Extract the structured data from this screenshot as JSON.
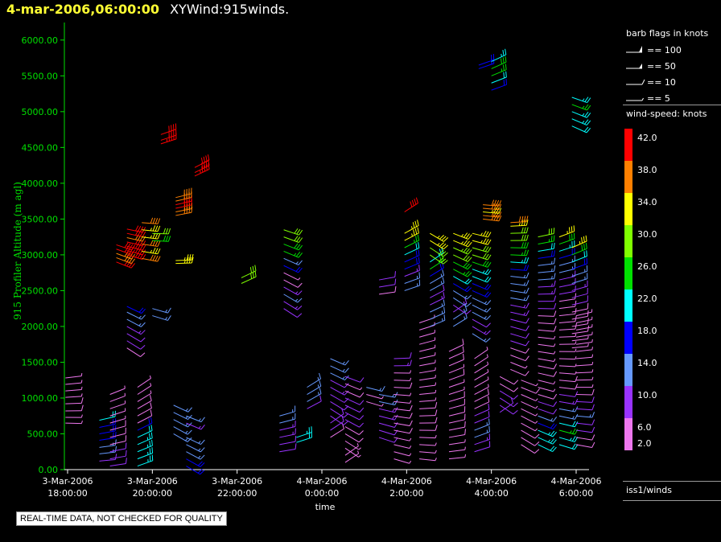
{
  "header": {
    "date_text": "4-mar-2006,06:00:00",
    "title_text": "XYWind:915winds."
  },
  "footer_note": "REAL-TIME DATA, NOT CHECKED FOR QUALITY",
  "legend": {
    "barb_title": "barb flags in knots",
    "barb_items": [
      "== 100",
      "== 50",
      "== 10",
      "== 5"
    ],
    "speed_title": "wind-speed: knots",
    "speed_labels": [
      "42.0",
      "38.0",
      "34.0",
      "30.0",
      "26.0",
      "22.0",
      "18.0",
      "14.0",
      "10.0",
      "6.0",
      "2.0"
    ],
    "speed_colors": [
      "#ff0000",
      "#ff8000",
      "#ffff00",
      "#80ff00",
      "#00e000",
      "#00ffff",
      "#0000ff",
      "#6699ff",
      "#9933ff",
      "#ee77ee"
    ],
    "source_label": "iss1/winds"
  },
  "chart_data": {
    "type": "scatter",
    "title": "",
    "xlabel": "time",
    "ylabel": "915 Profiler Altitude (m agl)",
    "ylim": [
      0,
      6200
    ],
    "x_ticks": [
      [
        "3-Mar-2006",
        "18:00:00"
      ],
      [
        "3-Mar-2006",
        "20:00:00"
      ],
      [
        "3-Mar-2006",
        "22:00:00"
      ],
      [
        "4-Mar-2006",
        "0:00:00"
      ],
      [
        "4-Mar-2006",
        "2:00:00"
      ],
      [
        "4-Mar-2006",
        "4:00:00"
      ],
      [
        "4-Mar-2006",
        "6:00:00"
      ]
    ],
    "y_ticks": [
      "0.00",
      "500.00",
      "1000.00",
      "1500.00",
      "2000.00",
      "2500.00",
      "3000.00",
      "3500.00",
      "4000.00",
      "4500.00",
      "5000.00",
      "5500.00",
      "6000.00"
    ],
    "axis_color": "#00e000",
    "profiles": [
      {
        "t": 17.95,
        "alts": [
          650,
          730,
          820,
          920,
          1010,
          1100,
          1190,
          1280
        ],
        "speeds": [
          7,
          7,
          8,
          8,
          7,
          7,
          6,
          6
        ]
      },
      {
        "t": 18.75,
        "alts": [
          120,
          220,
          310,
          410,
          500,
          590,
          690
        ],
        "speeds": [
          12,
          14,
          17,
          19,
          20,
          21,
          22
        ]
      },
      {
        "t": 19.0,
        "alts": [
          50,
          150,
          250,
          350,
          450,
          550,
          650,
          750,
          850,
          950,
          1050
        ],
        "speeds": [
          10,
          10,
          10,
          9,
          9,
          8,
          7,
          6,
          6,
          6,
          6
        ]
      },
      {
        "t": 19.15,
        "alts": [
          2900,
          2960,
          3020,
          3080,
          3140
        ],
        "speeds": [
          42,
          40,
          41,
          42,
          42
        ]
      },
      {
        "t": 19.4,
        "alts": [
          3000,
          3060,
          3120,
          3180,
          3240,
          3300,
          3360
        ],
        "speeds": [
          42,
          42,
          43,
          42,
          41,
          42,
          42
        ]
      },
      {
        "t": 19.4,
        "alts": [
          1700,
          1800,
          1900,
          2000,
          2100,
          2200,
          2280
        ],
        "speeds": [
          8,
          10,
          12,
          13,
          15,
          17,
          19
        ]
      },
      {
        "t": 19.65,
        "alts": [
          50,
          150,
          250,
          350,
          450,
          550,
          650,
          750,
          850,
          950,
          1050,
          1150
        ],
        "speeds": [
          24,
          25,
          24,
          24,
          22,
          20,
          9,
          8,
          8,
          7,
          7,
          6
        ]
      },
      {
        "t": 19.75,
        "alts": [
          2950,
          3050,
          3150,
          3250,
          3350,
          3450
        ],
        "speeds": [
          38,
          36,
          40,
          34,
          36,
          38
        ]
      },
      {
        "t": 20.0,
        "alts": [
          2150,
          2250,
          3200,
          3300
        ],
        "speeds": [
          14,
          15,
          29,
          30
        ]
      },
      {
        "t": 20.5,
        "alts": [
          500,
          600,
          700,
          800,
          900
        ],
        "speeds": [
          14,
          14,
          15,
          14,
          14
        ]
      },
      {
        "t": 20.55,
        "alts": [
          3550,
          3600,
          3650,
          3700,
          3750,
          3800
        ],
        "speeds": [
          40,
          40,
          42,
          42,
          40,
          40
        ]
      },
      {
        "t": 20.55,
        "alts": [
          2880,
          2920
        ],
        "speeds": [
          36,
          37
        ]
      },
      {
        "t": 20.2,
        "alts": [
          4550,
          4600,
          4680
        ],
        "speeds": [
          43,
          42,
          42
        ]
      },
      {
        "t": 21.0,
        "alts": [
          4100,
          4150,
          4220
        ],
        "speeds": [
          43,
          42,
          42
        ]
      },
      {
        "t": 20.8,
        "alts": [
          50,
          150,
          250,
          350,
          450,
          650,
          750
        ],
        "speeds": [
          18,
          19,
          16,
          15,
          14,
          13,
          14
        ]
      },
      {
        "t": 22.1,
        "alts": [
          2600,
          2680
        ],
        "speeds": [
          30,
          31
        ]
      },
      {
        "t": 23.0,
        "alts": [
          250,
          350,
          450,
          550,
          650,
          750
        ],
        "speeds": [
          12,
          12,
          13,
          13,
          14,
          14
        ]
      },
      {
        "t": 23.1,
        "alts": [
          2250,
          2350,
          2450,
          2550,
          2650,
          2750,
          2850,
          2950,
          3050,
          3150,
          3250,
          3350
        ],
        "speeds": [
          12,
          13,
          14,
          13,
          8,
          7,
          19,
          17,
          26,
          28,
          30,
          32
        ]
      },
      {
        "t": 23.4,
        "alts": [
          380,
          450
        ],
        "speeds": [
          22,
          24
        ]
      },
      {
        "t": 23.65,
        "alts": [
          850,
          950,
          1050,
          1150
        ],
        "speeds": [
          12,
          14,
          15,
          14
        ]
      },
      {
        "t": 24.2,
        "alts": [
          450,
          550,
          650,
          750,
          850,
          950,
          1050,
          1150,
          1250,
          1350,
          1450,
          1550
        ],
        "speeds": [
          9,
          10,
          10,
          11,
          12,
          12,
          12,
          13,
          12,
          14,
          15,
          14
        ]
      },
      {
        "t": 24.55,
        "alts": [
          100,
          200,
          300,
          400,
          500,
          600,
          700,
          800,
          900,
          1000,
          1100,
          1200,
          1300
        ],
        "speeds": [
          3,
          4,
          6,
          7,
          8,
          9,
          10,
          11,
          11,
          10,
          9,
          7,
          12
        ]
      },
      {
        "t": 25.05,
        "alts": [
          950,
          1050,
          1150
        ],
        "speeds": [
          6,
          7,
          14
        ]
      },
      {
        "t": 25.35,
        "alts": [
          450,
          550,
          650,
          750,
          850,
          950,
          1050
        ],
        "speeds": [
          12,
          12,
          12,
          13,
          13,
          14,
          14
        ]
      },
      {
        "t": 25.35,
        "alts": [
          2450,
          2550,
          2650
        ],
        "speeds": [
          8,
          10,
          12
        ]
      },
      {
        "t": 25.7,
        "alts": [
          150,
          250,
          350,
          450,
          550,
          650,
          750,
          850,
          950,
          1050,
          1150,
          1250,
          1350,
          1450,
          1550
        ],
        "speeds": [
          5,
          6,
          6,
          7,
          8,
          8,
          8,
          8,
          7,
          7,
          8,
          6,
          7,
          13,
          12
        ]
      },
      {
        "t": 25.95,
        "alts": [
          2500,
          2600,
          2700,
          2800,
          2900,
          3000,
          3100,
          3200,
          3300
        ],
        "speeds": [
          16,
          15,
          13,
          20,
          18,
          22,
          26,
          34,
          37
        ]
      },
      {
        "t": 25.95,
        "alts": [
          3600
        ],
        "speeds": [
          42
        ]
      },
      {
        "t": 26.3,
        "alts": [
          150,
          250,
          350,
          450,
          550,
          650,
          750,
          850,
          950,
          1050,
          1150,
          1250,
          1350,
          1450,
          1550,
          1650,
          1750,
          1850,
          1950,
          2050
        ],
        "speeds": [
          5,
          6,
          7,
          7,
          8,
          8,
          8,
          8,
          7,
          7,
          6,
          6,
          6,
          6,
          7,
          6,
          7,
          6,
          7,
          6
        ]
      },
      {
        "t": 26.55,
        "alts": [
          2000,
          2100,
          2200,
          2300,
          2400,
          2500,
          2600,
          2700,
          2800,
          2900,
          3000,
          3100,
          3200,
          3300
        ],
        "speeds": [
          15,
          14,
          15,
          13,
          10,
          16,
          17,
          20,
          26,
          24,
          30,
          32,
          34,
          36
        ]
      },
      {
        "t": 27.0,
        "alts": [
          150,
          250,
          350,
          450,
          550,
          650,
          750,
          850,
          950,
          1050,
          1150,
          1250,
          1350,
          1450,
          1550,
          1650
        ],
        "speeds": [
          6,
          6,
          7,
          8,
          8,
          9,
          9,
          8,
          8,
          7,
          7,
          8,
          7,
          8,
          8,
          8
        ]
      },
      {
        "t": 27.1,
        "alts": [
          2000,
          2100,
          2200,
          2300,
          2400,
          2500,
          2600,
          2700,
          2800,
          2900,
          3000,
          3100,
          3200,
          3300
        ],
        "speeds": [
          14,
          14,
          13,
          12,
          16,
          17,
          20,
          22,
          26,
          29,
          32,
          33,
          35,
          36
        ]
      },
      {
        "t": 27.6,
        "alts": [
          250,
          350,
          450,
          550,
          650,
          750,
          850,
          950,
          1050,
          1150,
          1250,
          1350,
          1450,
          1550
        ],
        "speeds": [
          12,
          13,
          14,
          14,
          10,
          10,
          9,
          8,
          7,
          7,
          7,
          7,
          6,
          6
        ]
      },
      {
        "t": 27.55,
        "alts": [
          1900,
          2000,
          2100,
          2200,
          2300,
          2400,
          2500,
          2600,
          2700,
          2800,
          2900,
          3000,
          3100,
          3200,
          3300
        ],
        "speeds": [
          14,
          13,
          12,
          14,
          16,
          16,
          18,
          20,
          22,
          25,
          28,
          30,
          32,
          34,
          36
        ]
      },
      {
        "t": 27.8,
        "alts": [
          3500,
          3550,
          3600,
          3650,
          3700
        ],
        "speeds": [
          38,
          38,
          36,
          38,
          38
        ]
      },
      {
        "t": 27.7,
        "alts": [
          5600,
          5650
        ],
        "speeds": [
          18,
          18
        ]
      },
      {
        "t": 28.0,
        "alts": [
          5300,
          5400,
          5500,
          5600,
          5700
        ],
        "speeds": [
          19,
          22,
          26,
          29,
          24
        ]
      },
      {
        "t": 28.2,
        "alts": [
          800,
          900,
          1000,
          1100,
          1200,
          1300
        ],
        "speeds": [
          12,
          11,
          10,
          10,
          9,
          8
        ]
      },
      {
        "t": 28.45,
        "alts": [
          1400,
          1500,
          1600,
          1700,
          1800,
          1900,
          2000,
          2100,
          2200,
          2300,
          2400,
          2500,
          2600,
          2700,
          2800,
          2900,
          3000,
          3100,
          3200,
          3300,
          3400,
          3450
        ],
        "speeds": [
          8,
          7,
          8,
          8,
          10,
          10,
          11,
          12,
          13,
          13,
          14,
          14,
          16,
          17,
          20,
          23,
          26,
          28,
          30,
          32,
          36,
          38
        ]
      },
      {
        "t": 28.7,
        "alts": [
          350,
          450,
          550,
          650,
          750,
          850,
          950,
          1050,
          1150,
          1250
        ],
        "speeds": [
          8,
          8,
          8,
          7,
          7,
          6,
          6,
          6,
          8,
          7
        ]
      },
      {
        "t": 29.1,
        "alts": [
          350,
          450,
          550,
          650,
          750,
          850,
          950,
          1050,
          1150,
          1250,
          1350,
          1450,
          1550,
          1650,
          1750,
          1850,
          1950,
          2050,
          2150,
          2250,
          2350,
          2450,
          2550,
          2650,
          2750,
          2850,
          2950,
          3050,
          3150,
          3250
        ],
        "speeds": [
          22,
          24,
          25,
          20,
          14,
          12,
          10,
          8,
          7,
          7,
          8,
          8,
          6,
          6,
          7,
          7,
          8,
          8,
          9,
          10,
          12,
          13,
          13,
          14,
          15,
          17,
          19,
          22,
          26,
          32
        ]
      },
      {
        "t": 29.6,
        "alts": [
          350,
          450,
          550,
          650,
          750,
          850,
          950,
          1050,
          1150,
          1250,
          1350,
          1450,
          1550,
          1650,
          1750,
          1850,
          1950,
          2050,
          2150,
          2250,
          2350,
          2450,
          2550,
          2650,
          2750,
          2850,
          2950,
          3050,
          3150,
          3250
        ],
        "speeds": [
          22,
          24,
          26,
          22,
          16,
          14,
          13,
          11,
          9,
          8,
          7,
          7,
          6,
          6,
          7,
          7,
          8,
          8,
          8,
          9,
          9,
          10,
          11,
          13,
          14,
          16,
          20,
          24,
          28,
          34
        ]
      },
      {
        "t": 29.9,
        "alts": [
          1700,
          1800,
          1900,
          2000,
          2100,
          2200,
          2300,
          2400,
          2500,
          2600,
          2700,
          2800,
          2900,
          3000,
          3100
        ],
        "speeds": [
          6,
          7,
          8,
          8,
          9,
          9,
          10,
          12,
          13,
          14,
          16,
          18,
          22,
          28,
          34
        ]
      },
      {
        "t": 29.9,
        "alts": [
          4800,
          4900,
          5000,
          5100,
          5200
        ],
        "speeds": [
          22,
          23,
          25,
          27,
          24
        ]
      },
      {
        "t": 30.0,
        "alts": [
          350,
          450,
          550,
          650,
          750,
          850,
          950,
          1050,
          1150,
          1250,
          1350,
          1450,
          1550,
          1650,
          1750,
          1850,
          1950,
          2050,
          2150
        ],
        "speeds": [
          8,
          9,
          10,
          12,
          14,
          12,
          10,
          8,
          7,
          6,
          7,
          6,
          5,
          6,
          5,
          5,
          6,
          7,
          6
        ]
      }
    ]
  }
}
